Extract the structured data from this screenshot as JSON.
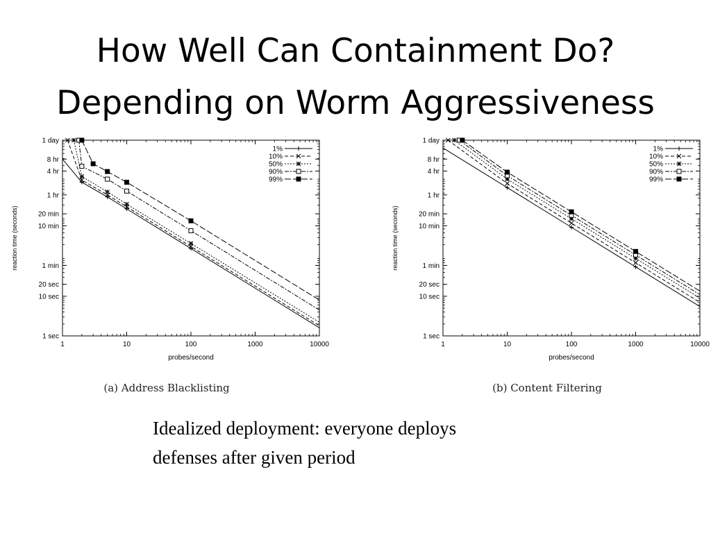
{
  "slide": {
    "title_line1": "How Well Can Containment Do?",
    "title_line2": "Depending on Worm Aggressiveness",
    "body_line1": "Idealized deployment: everyone deploys",
    "body_line2": "defenses after given period"
  },
  "chart_data": [
    {
      "type": "line",
      "caption": "(a) Address Blacklisting",
      "xlabel": "probes/second",
      "ylabel": "reaction time (seconds)",
      "xscale": "log",
      "yscale": "log",
      "xlim": [
        1,
        10000
      ],
      "ylim": [
        1,
        86400
      ],
      "x_ticks": [
        1,
        10,
        100,
        1000,
        10000
      ],
      "x_tick_labels": [
        "1",
        "10",
        "100",
        "1000",
        "10000"
      ],
      "y_ticks": [
        1,
        10,
        20,
        60,
        600,
        1200,
        3600,
        14400,
        28800,
        86400
      ],
      "y_tick_labels": [
        "1 sec",
        "10 sec",
        "20 sec",
        "1 min",
        "10 min",
        "20 min",
        "1 hr",
        "4 hr",
        "8 hr",
        "1 day"
      ],
      "legend_position": "top-right",
      "series": [
        {
          "name": "1%",
          "marker": "plus",
          "dash": "solid",
          "points": [
            [
              1,
              28800
            ],
            [
              2,
              7500
            ],
            [
              5,
              3200
            ],
            [
              10,
              1600
            ],
            [
              100,
              160
            ],
            [
              10000,
              1.6
            ]
          ]
        },
        {
          "name": "10%",
          "marker": "x",
          "dash": "dash",
          "points": [
            [
              1.2,
              86400
            ],
            [
              2,
              8500
            ],
            [
              5,
              3600
            ],
            [
              10,
              1800
            ],
            [
              100,
              180
            ],
            [
              10000,
              1.8
            ]
          ]
        },
        {
          "name": "50%",
          "marker": "star",
          "dash": "dot",
          "points": [
            [
              1.5,
              86400
            ],
            [
              2,
              10500
            ],
            [
              5,
              4300
            ],
            [
              10,
              2100
            ],
            [
              100,
              215
            ],
            [
              10000,
              2.2
            ]
          ]
        },
        {
          "name": "90%",
          "marker": "square",
          "dash": "dashdot",
          "points": [
            [
              1.8,
              86400
            ],
            [
              2,
              19000
            ],
            [
              5,
              9000
            ],
            [
              10,
              4500
            ],
            [
              100,
              450
            ],
            [
              10000,
              4.5
            ]
          ]
        },
        {
          "name": "99%",
          "marker": "filled-square",
          "dash": "longdash",
          "points": [
            [
              2,
              86400
            ],
            [
              3,
              22000
            ],
            [
              5,
              14000
            ],
            [
              10,
              7500
            ],
            [
              100,
              800
            ],
            [
              10000,
              8
            ]
          ]
        }
      ]
    },
    {
      "type": "line",
      "caption": "(b) Content Filtering",
      "xlabel": "probes/second",
      "ylabel": "reaction time (seconds)",
      "xscale": "log",
      "yscale": "log",
      "xlim": [
        1,
        10000
      ],
      "ylim": [
        1,
        86400
      ],
      "x_ticks": [
        1,
        10,
        100,
        1000,
        10000
      ],
      "x_tick_labels": [
        "1",
        "10",
        "100",
        "1000",
        "10000"
      ],
      "y_ticks": [
        1,
        10,
        20,
        60,
        600,
        1200,
        3600,
        14400,
        28800,
        86400
      ],
      "y_tick_labels": [
        "1 sec",
        "10 sec",
        "20 sec",
        "1 min",
        "10 min",
        "20 min",
        "1 hr",
        "4 hr",
        "8 hr",
        "1 day"
      ],
      "legend_position": "top-right",
      "series": [
        {
          "name": "1%",
          "marker": "plus",
          "dash": "solid",
          "points": [
            [
              1,
              55000
            ],
            [
              10,
              5500
            ],
            [
              100,
              550
            ],
            [
              1000,
              55
            ],
            [
              10000,
              5.5
            ]
          ]
        },
        {
          "name": "10%",
          "marker": "x",
          "dash": "dash",
          "points": [
            [
              1.2,
              86400
            ],
            [
              10,
              7000
            ],
            [
              100,
              700
            ],
            [
              1000,
              70
            ],
            [
              10000,
              7
            ]
          ]
        },
        {
          "name": "50%",
          "marker": "star",
          "dash": "dot",
          "points": [
            [
              1.5,
              86400
            ],
            [
              10,
              9000
            ],
            [
              100,
              900
            ],
            [
              1000,
              90
            ],
            [
              10000,
              9
            ]
          ]
        },
        {
          "name": "90%",
          "marker": "square",
          "dash": "dashdot",
          "points": [
            [
              1.8,
              86400
            ],
            [
              10,
              11000
            ],
            [
              100,
              1100
            ],
            [
              1000,
              110
            ],
            [
              10000,
              11
            ]
          ]
        },
        {
          "name": "99%",
          "marker": "filled-square",
          "dash": "longdash",
          "points": [
            [
              2,
              86400
            ],
            [
              10,
              13500
            ],
            [
              100,
              1350
            ],
            [
              1000,
              135
            ],
            [
              10000,
              13.5
            ]
          ]
        }
      ]
    }
  ]
}
